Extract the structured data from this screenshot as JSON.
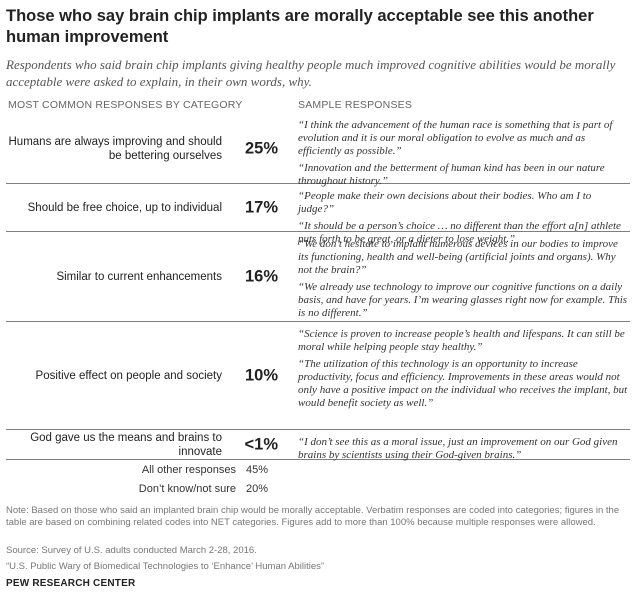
{
  "title": "Those who say brain chip implants are morally acceptable see this another human improvement",
  "subtitle": "Respondents who said brain chip implants giving healthy people much improved cognitive abilities would be morally acceptable were asked to explain, in their own words, why.",
  "headers": {
    "left": "MOST COMMON RESPONSES BY CATEGORY",
    "right": "SAMPLE RESPONSES"
  },
  "rows": [
    {
      "category": "Humans are always improving and should be bettering ourselves",
      "pct": "25%",
      "quotes": [
        "“I think the advancement of the human race is something that is part of evolution and it is our moral obligation to evolve as much and as efficiently as possible.”",
        "“Innovation and the betterment of human kind has been in our nature throughout history.”"
      ]
    },
    {
      "category": "Should be free choice, up to individual",
      "pct": "17%",
      "quotes": [
        "“People make their own decisions about their bodies. Who am I to judge?”",
        "“It should be a person’s choice … no different than the effort a[n] athlete puts forth to be great, or a dieter to lose weight.”"
      ]
    },
    {
      "category": "Similar to current enhancements",
      "pct": "16%",
      "quotes": [
        "“We don’t hesitate to implant numerous devices in our bodies to improve its functioning, health and well-being (artificial joints and organs). Why not the brain?”",
        "“We already use technology to improve our cognitive functions on a daily basis, and have for years. I’m wearing glasses right now for example. This is no different.”"
      ]
    },
    {
      "category": "Positive effect on people and society",
      "pct": "10%",
      "quotes": [
        "“Science is proven to increase people’s health and lifespans. It can still be moral while helping people stay healthy.”",
        "“The utilization of this technology is an opportunity to increase productivity, focus and efficiency. Improvements in these areas would not only have a positive impact on the individual who receives the implant, but would benefit society as well.”"
      ]
    },
    {
      "category": "God gave us the means and brains to innovate",
      "pct": "<1%",
      "quotes": [
        "“I don’t see this as a moral issue, just an improvement on our God given brains by scientists using their God-given brains.”"
      ]
    }
  ],
  "others": [
    {
      "label": "All other responses",
      "value": "45%"
    },
    {
      "label": "Don’t know/not sure",
      "value": "20%"
    }
  ],
  "note": "Note: Based on those who said an implanted brain chip would be morally acceptable. Verbatim responses are coded into categories; figures in the table are based on combining related codes into NET categories. Figures add to more than 100% because multiple responses were allowed.",
  "source": "Source: Survey of U.S. adults conducted March 2-28, 2016.",
  "report": "“U.S. Public Wary of Biomedical Technologies to ‘Enhance’ Human Abilities”",
  "brand": "PEW RESEARCH CENTER",
  "chart_data": {
    "type": "table",
    "title": "Those who say brain chip implants are morally acceptable see this another human improvement",
    "columns": [
      "MOST COMMON RESPONSES BY CATEGORY",
      "SAMPLE RESPONSES"
    ],
    "categories": [
      "Humans are always improving and should be bettering ourselves",
      "Should be free choice, up to individual",
      "Similar to current enhancements",
      "Positive effect on people and society",
      "God gave us the means and brains to innovate",
      "All other responses",
      "Don’t know/not sure"
    ],
    "values": [
      25,
      17,
      16,
      10,
      0.5,
      45,
      20
    ]
  }
}
